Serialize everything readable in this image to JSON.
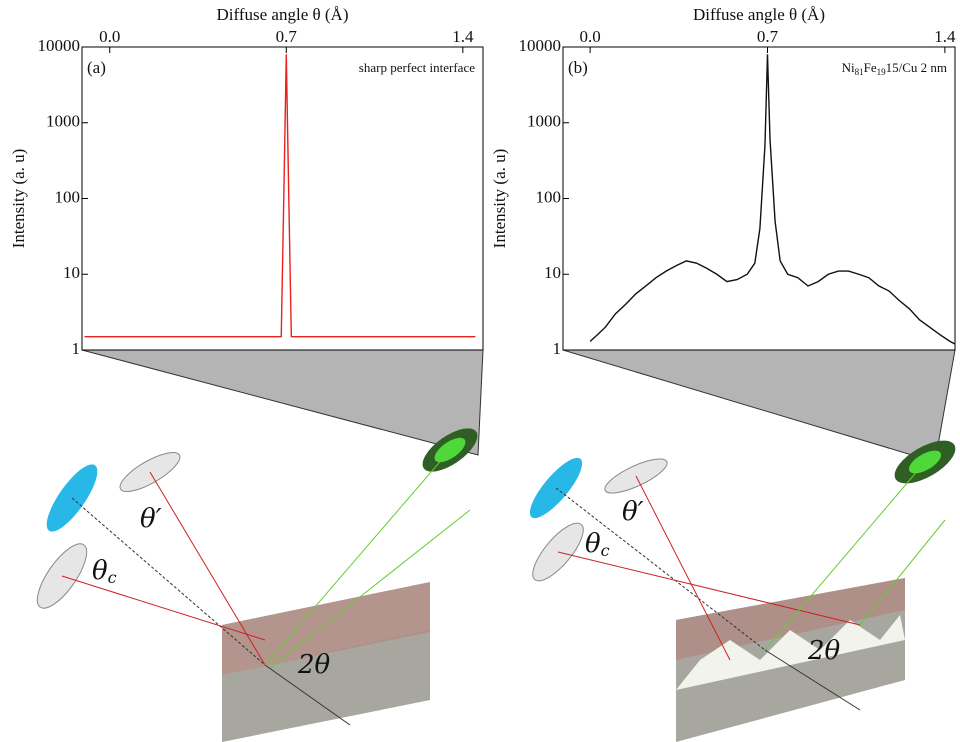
{
  "chart_data": [
    {
      "type": "line",
      "x_label": "Diffuse angle θ (Å)",
      "y_label": "Intensity (a. u)",
      "panel": "(a)",
      "annotation": "sharp perfect interface",
      "xlim": [
        -0.11,
        1.48
      ],
      "xticks": [
        {
          "value": 0,
          "label": "0.0"
        },
        0.7,
        {
          "value": 1.4,
          "label": "1.4"
        }
      ],
      "ylim": [
        1,
        10000
      ],
      "yticks": [
        1,
        10,
        100,
        1000,
        10000
      ],
      "log_y": true,
      "series": [
        {
          "color": "#e8211c",
          "x": [
            -0.1,
            0.6,
            0.68,
            0.69,
            0.7,
            0.71,
            0.72,
            0.8,
            1.45
          ],
          "values": [
            1.5,
            1.5,
            1.5,
            100,
            8000,
            100,
            1.5,
            1.5,
            1.5
          ]
        }
      ]
    },
    {
      "type": "line",
      "x_label": "Diffuse angle θ (Å)",
      "y_label": "Intensity (a. u)",
      "panel": "(b)",
      "annotation_parts": [
        "Ni",
        "81",
        "Fe",
        "19",
        "15/Cu 2 nm"
      ],
      "xlim": [
        -0.107,
        1.44
      ],
      "xticks": [
        {
          "value": 0,
          "label": "0.0"
        },
        0.7,
        {
          "value": 1.4,
          "label": "1.4"
        }
      ],
      "ylim": [
        1,
        10000
      ],
      "yticks": [
        1,
        10,
        100,
        1000,
        10000
      ],
      "log_y": true,
      "series": [
        {
          "color": "#111111",
          "x": [
            0.0,
            0.03,
            0.06,
            0.1,
            0.14,
            0.18,
            0.22,
            0.26,
            0.3,
            0.34,
            0.38,
            0.42,
            0.46,
            0.5,
            0.54,
            0.58,
            0.62,
            0.65,
            0.67,
            0.69,
            0.7,
            0.71,
            0.73,
            0.75,
            0.78,
            0.82,
            0.86,
            0.9,
            0.94,
            0.98,
            1.02,
            1.06,
            1.1,
            1.14,
            1.18,
            1.22,
            1.26,
            1.3,
            1.34,
            1.38,
            1.42,
            1.44
          ],
          "values": [
            1.3,
            1.6,
            2,
            3,
            4,
            5.5,
            7,
            9,
            11,
            13,
            15,
            14,
            12,
            10,
            8,
            8.5,
            10,
            14,
            40,
            500,
            8000,
            600,
            50,
            15,
            10,
            9,
            7,
            8,
            10,
            11,
            11,
            10,
            9,
            7,
            6,
            4.5,
            3.5,
            2.5,
            2,
            1.6,
            1.3,
            1.2
          ]
        }
      ]
    }
  ],
  "illustrations": [
    {
      "theta_prime": "θ′",
      "theta_c": [
        "θ",
        "c"
      ],
      "two_theta": "2θ"
    },
    {
      "theta_prime": "θ′",
      "theta_c": [
        "θ",
        "c"
      ],
      "two_theta": "2θ"
    }
  ]
}
